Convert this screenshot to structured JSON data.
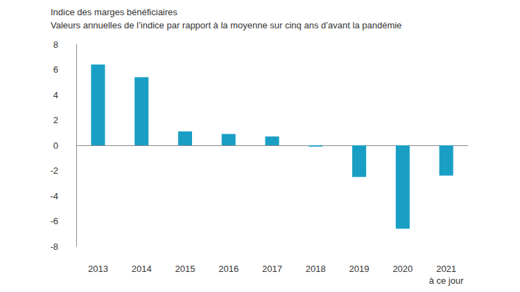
{
  "chart_data": {
    "type": "bar",
    "title": "Indice des marges bénéficiaires",
    "subtitle": "Valeurs annuelles de l’indice par rapport à la moyenne sur cinq ans d’avant la pandémie",
    "categories": [
      "2013",
      "2014",
      "2015",
      "2016",
      "2017",
      "2018",
      "2019",
      "2020",
      "2021\nà ce jour"
    ],
    "values": [
      6.4,
      5.4,
      1.1,
      0.9,
      0.7,
      -0.1,
      -2.5,
      -6.6,
      -2.4
    ],
    "color": "#1a9fc4",
    "ylim": [
      -8,
      8
    ],
    "yticks": [
      -8,
      -6,
      -4,
      -2,
      0,
      2,
      4,
      6,
      8
    ],
    "grid": false
  }
}
